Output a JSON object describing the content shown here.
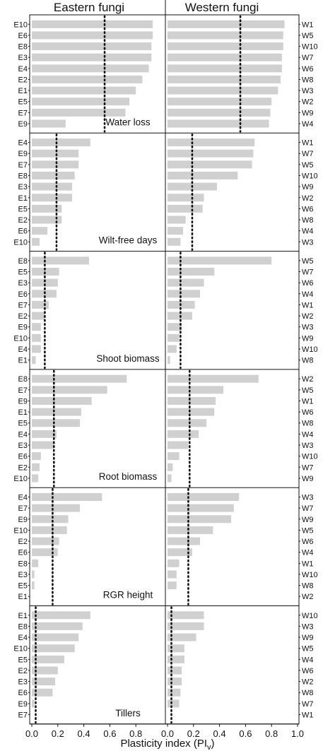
{
  "chart_data": {
    "type": "bar",
    "orientation": "horizontal",
    "column_titles": [
      "Eastern fungi",
      "Western fungi"
    ],
    "xlabel": "Plasticity index (PI",
    "xlabel_sub": "v",
    "xlabel_close": ")",
    "xlim": [
      0,
      1.0
    ],
    "xticks": [
      "0.0",
      "0.2",
      "0.4",
      "0.6",
      "0.8",
      "1.0"
    ],
    "bar_color": "#d0d0d0",
    "ref_line_style": "dotted",
    "panels": [
      {
        "title": "Water loss",
        "eastern": {
          "ref": 0.56,
          "labels": [
            "E10",
            "E6",
            "E8",
            "E3",
            "E4",
            "E2",
            "E1",
            "E5",
            "E7",
            "E9"
          ],
          "values": [
            0.93,
            0.93,
            0.92,
            0.92,
            0.9,
            0.85,
            0.8,
            0.75,
            0.72,
            0.26
          ]
        },
        "western": {
          "ref": 0.56,
          "labels": [
            "W1",
            "W5",
            "W10",
            "W7",
            "W6",
            "W8",
            "W3",
            "W2",
            "W9",
            "W4"
          ],
          "values": [
            0.9,
            0.89,
            0.89,
            0.88,
            0.88,
            0.87,
            0.85,
            0.8,
            0.79,
            0.78
          ]
        }
      },
      {
        "title": "Wilt-free days",
        "eastern": {
          "ref": 0.19,
          "labels": [
            "E4",
            "E9",
            "E7",
            "E8",
            "E3",
            "E1",
            "E5",
            "E2",
            "E6",
            "E10"
          ],
          "values": [
            0.45,
            0.36,
            0.36,
            0.33,
            0.31,
            0.31,
            0.23,
            0.23,
            0.12,
            0.06
          ]
        },
        "western": {
          "ref": 0.19,
          "labels": [
            "W1",
            "W7",
            "W5",
            "W10",
            "W9",
            "W2",
            "W6",
            "W8",
            "W4",
            "W3"
          ],
          "values": [
            0.67,
            0.66,
            0.65,
            0.54,
            0.38,
            0.28,
            0.27,
            0.14,
            0.12,
            0.1
          ]
        }
      },
      {
        "title": "Shoot biomass",
        "eastern": {
          "ref": 0.1,
          "labels": [
            "E8",
            "E5",
            "E3",
            "E6",
            "E7",
            "E2",
            "E9",
            "E10",
            "E4",
            "E1"
          ],
          "values": [
            0.44,
            0.21,
            0.2,
            0.19,
            0.13,
            0.1,
            0.07,
            0.07,
            0.07,
            0.03
          ]
        },
        "western": {
          "ref": 0.1,
          "labels": [
            "W5",
            "W7",
            "W6",
            "W4",
            "W1",
            "W2",
            "W3",
            "W9",
            "W10",
            "W8"
          ],
          "values": [
            0.8,
            0.36,
            0.28,
            0.25,
            0.21,
            0.19,
            0.11,
            0.09,
            0.07,
            0.02
          ]
        }
      },
      {
        "title": "Root biomass",
        "eastern": {
          "ref": 0.17,
          "labels": [
            "E8",
            "E7",
            "E9",
            "E1",
            "E5",
            "E4",
            "E3",
            "E6",
            "E2",
            "E10"
          ],
          "values": [
            0.73,
            0.58,
            0.46,
            0.38,
            0.37,
            0.19,
            0.17,
            0.07,
            0.06,
            0.05
          ]
        },
        "western": {
          "ref": 0.17,
          "labels": [
            "W2",
            "W5",
            "W1",
            "W6",
            "W8",
            "W4",
            "W3",
            "W10",
            "W7",
            "W9"
          ],
          "values": [
            0.7,
            0.43,
            0.37,
            0.36,
            0.3,
            0.24,
            0.16,
            0.09,
            0.04,
            0.03
          ]
        }
      },
      {
        "title": "RGR height",
        "eastern": {
          "ref": 0.16,
          "labels": [
            "E4",
            "E7",
            "E9",
            "E10",
            "E2",
            "E6",
            "E8",
            "E3",
            "E5",
            "E1"
          ],
          "values": [
            0.54,
            0.37,
            0.28,
            0.27,
            0.21,
            0.2,
            0.05,
            0.02,
            0.02,
            0.0
          ]
        },
        "western": {
          "ref": 0.16,
          "labels": [
            "W3",
            "W7",
            "W9",
            "W5",
            "W6",
            "W4",
            "W1",
            "W10",
            "W8",
            "W2"
          ],
          "values": [
            0.55,
            0.51,
            0.49,
            0.35,
            0.25,
            0.19,
            0.09,
            0.07,
            0.07,
            0.0
          ]
        }
      },
      {
        "title": "Tillers",
        "eastern": {
          "ref": 0.03,
          "labels": [
            "E1",
            "E8",
            "E4",
            "E10",
            "E5",
            "E2",
            "E3",
            "E6",
            "E9",
            "E7"
          ],
          "values": [
            0.45,
            0.39,
            0.36,
            0.33,
            0.25,
            0.2,
            0.18,
            0.16,
            0.02,
            0.0
          ]
        },
        "western": {
          "ref": 0.03,
          "labels": [
            "W10",
            "W3",
            "W9",
            "W5",
            "W4",
            "W6",
            "W2",
            "W8",
            "W7",
            "W1"
          ],
          "values": [
            0.28,
            0.28,
            0.22,
            0.13,
            0.13,
            0.11,
            0.11,
            0.1,
            0.09,
            0.0
          ]
        }
      }
    ]
  }
}
